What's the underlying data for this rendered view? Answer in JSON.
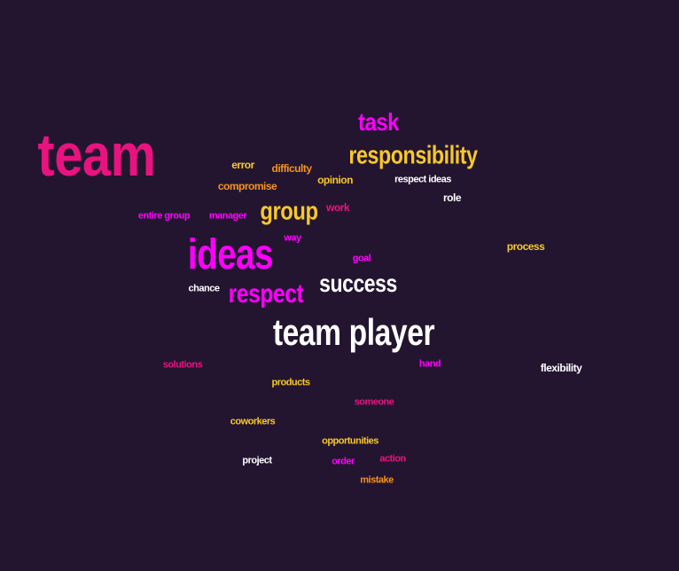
{
  "wordcloud": {
    "background": "#231530",
    "palette": {
      "pink": "#e8137f",
      "magenta": "#ff00ff",
      "yellow": "#f7c82a",
      "orange": "#f4931e",
      "white": "#ffffff"
    },
    "words": {
      "team": "team",
      "task": "task",
      "responsibility": "responsibility",
      "error": "error",
      "difficulty": "difficulty",
      "opinion": "opinion",
      "respect_ideas": "respect ideas",
      "compromise": "compromise",
      "role": "role",
      "entire_group": "entire group",
      "manager": "manager",
      "group": "group",
      "work": "work",
      "way": "way",
      "process": "process",
      "ideas": "ideas",
      "goal": "goal",
      "success": "success",
      "chance": "chance",
      "respect": "respect",
      "team_player": "team player",
      "solutions": "solutions",
      "hand": "hand",
      "flexibility": "flexibility",
      "products": "products",
      "someone": "someone",
      "coworkers": "coworkers",
      "opportunities": "opportunities",
      "project": "project",
      "order": "order",
      "action": "action",
      "mistake": "mistake"
    }
  }
}
